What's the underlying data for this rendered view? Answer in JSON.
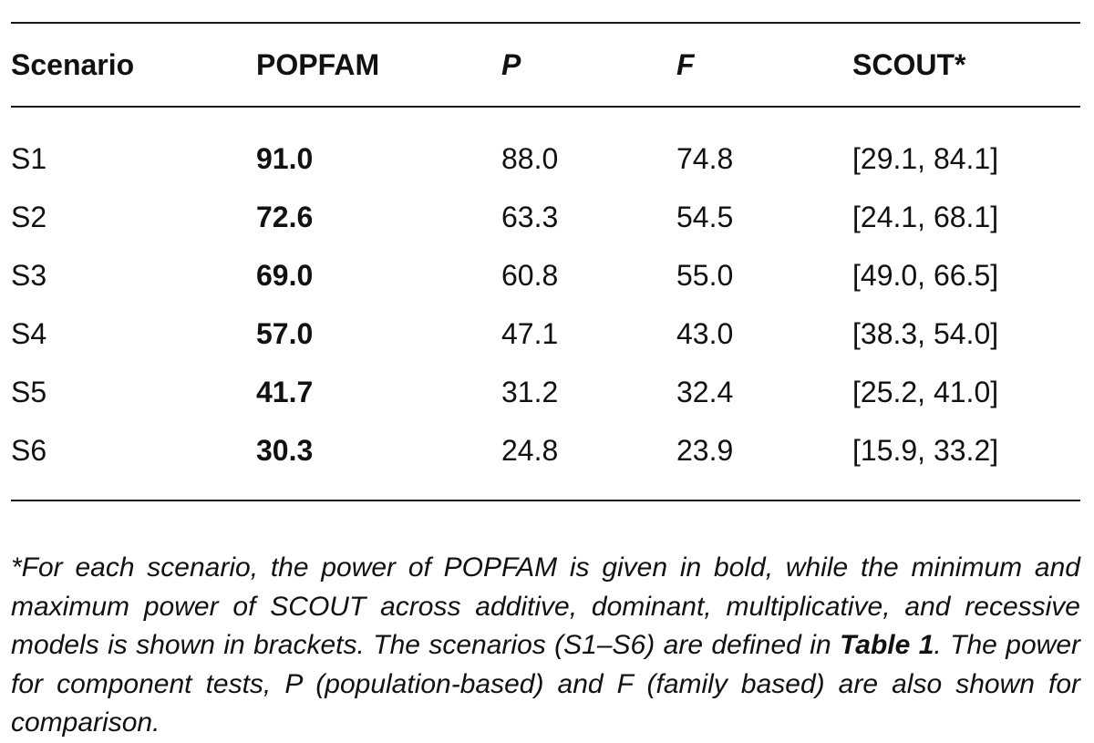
{
  "table": {
    "headers": [
      "Scenario",
      "POPFAM",
      "P",
      "F",
      "SCOUT*"
    ],
    "rows": [
      {
        "scenario": "S1",
        "popfam": "91.0",
        "p": "88.0",
        "f": "74.8",
        "scout": "[29.1, 84.1]"
      },
      {
        "scenario": "S2",
        "popfam": "72.6",
        "p": "63.3",
        "f": "54.5",
        "scout": "[24.1, 68.1]"
      },
      {
        "scenario": "S3",
        "popfam": "69.0",
        "p": "60.8",
        "f": "55.0",
        "scout": "[49.0, 66.5]"
      },
      {
        "scenario": "S4",
        "popfam": "57.0",
        "p": "47.1",
        "f": "43.0",
        "scout": "[38.3, 54.0]"
      },
      {
        "scenario": "S5",
        "popfam": "41.7",
        "p": "31.2",
        "f": "32.4",
        "scout": "[25.2, 41.0]"
      },
      {
        "scenario": "S6",
        "popfam": "30.3",
        "p": "24.8",
        "f": "23.9",
        "scout": "[15.9, 33.2]"
      }
    ]
  },
  "footnote": {
    "text_before": "*For each scenario, the power of POPFAM is given in bold, while the minimum and maximum power of SCOUT across additive, dominant, multiplicative, and recessive models is shown in brackets. The scenarios (S1–S6) are defined in ",
    "table_ref": "Table 1",
    "text_after": ". The power for component tests, P (population-based) and F (family based) are also shown for comparison."
  }
}
